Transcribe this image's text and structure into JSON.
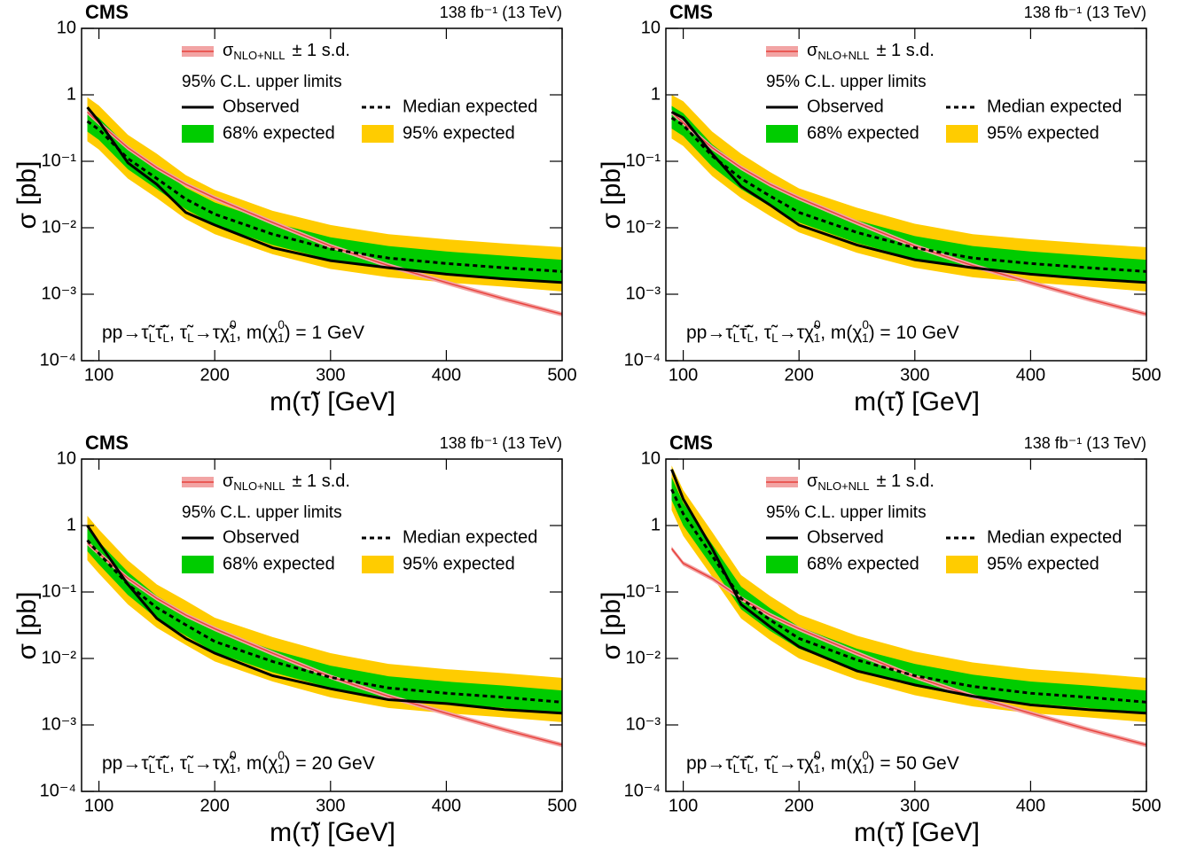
{
  "chart_data": [
    {
      "type": "line",
      "experiment": "CMS",
      "lumi_label": "138 fb⁻¹ (13 TeV)",
      "xlabel": "m(τ̃) [GeV]",
      "ylabel": "σ [pb]",
      "legend_title": "95% C.L. upper limits",
      "annotation": [
        "pp→τ̃",
        "L",
        "τ̃̄",
        "L",
        ", τ̃",
        "L",
        "→τχ̃",
        "0",
        "1",
        ", m(χ",
        "0",
        "1",
        ") = 1 GeV"
      ],
      "log_y": true,
      "xlim": [
        85,
        500
      ],
      "ylim": [
        0.0001,
        10
      ],
      "xticks": [
        100,
        200,
        300,
        400,
        500
      ],
      "yticks": [
        {
          "value": 0.0001,
          "label": "10⁻⁴"
        },
        {
          "value": 0.001,
          "label": "10⁻³"
        },
        {
          "value": 0.01,
          "label": "10⁻²"
        },
        {
          "value": 0.1,
          "label": "10⁻¹"
        },
        1,
        10
      ],
      "x": [
        90,
        100,
        125,
        150,
        175,
        200,
        250,
        300,
        350,
        400,
        450,
        500
      ],
      "series": [
        {
          "name": "95% expected",
          "color": "#ffcc00",
          "low": [
            0.2,
            0.15,
            0.055,
            0.028,
            0.0135,
            0.008,
            0.004,
            0.0024,
            0.0018,
            0.0015,
            0.0013,
            0.0011
          ],
          "high": [
            0.92,
            0.69,
            0.25,
            0.13,
            0.062,
            0.037,
            0.018,
            0.011,
            0.008,
            0.0067,
            0.0058,
            0.0051
          ]
        },
        {
          "name": "68% expected",
          "color": "#00cc00",
          "low": [
            0.28,
            0.21,
            0.076,
            0.038,
            0.019,
            0.011,
            0.0055,
            0.0033,
            0.0024,
            0.002,
            0.0017,
            0.0015
          ],
          "high": [
            0.6,
            0.45,
            0.165,
            0.083,
            0.04,
            0.024,
            0.012,
            0.0072,
            0.0053,
            0.0044,
            0.0038,
            0.0033
          ]
        },
        {
          "name": [
            "σ",
            "NLO+NLL",
            "± 1 s.d."
          ],
          "color": "#e8413c",
          "band_color": "#f2a4a4",
          "values": [
            0.55,
            0.38,
            0.16,
            0.08,
            0.045,
            0.028,
            0.012,
            0.0053,
            0.0027,
            0.0015,
            0.00085,
            0.0005
          ],
          "low": [
            0.506,
            0.35,
            0.147,
            0.0736,
            0.0414,
            0.0258,
            0.011,
            0.0049,
            0.00248,
            0.00138,
            0.00078,
            0.00046
          ],
          "high": [
            0.594,
            0.41,
            0.173,
            0.0864,
            0.0486,
            0.0302,
            0.013,
            0.0057,
            0.00292,
            0.00162,
            0.00092,
            0.00054
          ]
        },
        {
          "name": "Median expected",
          "color": "#000000",
          "dashed": true,
          "values": [
            0.4,
            0.3,
            0.11,
            0.055,
            0.027,
            0.016,
            0.008,
            0.0048,
            0.0035,
            0.0029,
            0.0025,
            0.0022
          ]
        },
        {
          "name": "Observed",
          "color": "#000000",
          "values": [
            0.65,
            0.4,
            0.095,
            0.045,
            0.017,
            0.011,
            0.005,
            0.0032,
            0.0025,
            0.002,
            0.0017,
            0.0015
          ]
        }
      ]
    },
    {
      "type": "line",
      "experiment": "CMS",
      "lumi_label": "138 fb⁻¹ (13 TeV)",
      "xlabel": "m(τ̃) [GeV]",
      "ylabel": "σ [pb]",
      "legend_title": "95% C.L. upper limits",
      "annotation": [
        "pp→τ̃",
        "L",
        "τ̃̄",
        "L",
        ", τ̃",
        "L",
        "→τχ̃",
        "0",
        "1",
        ", m(χ",
        "0",
        "1",
        ") = 10 GeV"
      ],
      "log_y": true,
      "xlim": [
        85,
        500
      ],
      "ylim": [
        0.0001,
        10
      ],
      "xticks": [
        100,
        200,
        300,
        400,
        500
      ],
      "yticks": [
        {
          "value": 0.0001,
          "label": "10⁻⁴"
        },
        {
          "value": 0.001,
          "label": "10⁻³"
        },
        {
          "value": 0.01,
          "label": "10⁻²"
        },
        {
          "value": 0.1,
          "label": "10⁻¹"
        },
        1,
        10
      ],
      "x": [
        90,
        100,
        125,
        150,
        175,
        200,
        250,
        300,
        350,
        400,
        450,
        500
      ],
      "series": [
        {
          "name": "95% expected",
          "color": "#ffcc00",
          "low": [
            0.22,
            0.17,
            0.06,
            0.028,
            0.015,
            0.0085,
            0.0042,
            0.0025,
            0.0018,
            0.0015,
            0.0013,
            0.0011
          ],
          "high": [
            1.0,
            0.8,
            0.28,
            0.13,
            0.069,
            0.039,
            0.02,
            0.0115,
            0.008,
            0.0067,
            0.0058,
            0.0051
          ]
        },
        {
          "name": "68% expected",
          "color": "#00cc00",
          "low": [
            0.31,
            0.24,
            0.083,
            0.038,
            0.021,
            0.012,
            0.0059,
            0.0034,
            0.0024,
            0.002,
            0.0017,
            0.0015
          ],
          "high": [
            0.68,
            0.53,
            0.18,
            0.083,
            0.045,
            0.026,
            0.013,
            0.0075,
            0.0053,
            0.0044,
            0.0038,
            0.0033
          ]
        },
        {
          "name": [
            "σ",
            "NLO+NLL",
            "± 1 s.d."
          ],
          "color": "#e8413c",
          "band_color": "#f2a4a4",
          "values": [
            0.55,
            0.38,
            0.16,
            0.08,
            0.045,
            0.028,
            0.012,
            0.0053,
            0.0027,
            0.0015,
            0.00085,
            0.0005
          ],
          "low": [
            0.506,
            0.35,
            0.147,
            0.0736,
            0.0414,
            0.0258,
            0.011,
            0.0049,
            0.00248,
            0.00138,
            0.00078,
            0.00046
          ],
          "high": [
            0.594,
            0.41,
            0.173,
            0.0864,
            0.0486,
            0.0302,
            0.013,
            0.0057,
            0.00292,
            0.00162,
            0.00092,
            0.00054
          ]
        },
        {
          "name": "Median expected",
          "color": "#000000",
          "dashed": true,
          "values": [
            0.45,
            0.35,
            0.12,
            0.055,
            0.03,
            0.017,
            0.0085,
            0.005,
            0.0035,
            0.0029,
            0.0025,
            0.0022
          ]
        },
        {
          "name": "Observed",
          "color": "#000000",
          "values": [
            0.55,
            0.45,
            0.13,
            0.042,
            0.022,
            0.011,
            0.0055,
            0.0033,
            0.0025,
            0.002,
            0.0017,
            0.0015
          ]
        }
      ]
    },
    {
      "type": "line",
      "experiment": "CMS",
      "lumi_label": "138 fb⁻¹ (13 TeV)",
      "xlabel": "m(τ̃) [GeV]",
      "ylabel": "σ [pb]",
      "legend_title": "95% C.L. upper limits",
      "annotation": [
        "pp→τ̃",
        "L",
        "τ̃̄",
        "L",
        ", τ̃",
        "L",
        "→τχ̃",
        "0",
        "1",
        ", m(χ",
        "0",
        "1",
        ") = 20 GeV"
      ],
      "log_y": true,
      "xlim": [
        85,
        500
      ],
      "ylim": [
        0.0001,
        10
      ],
      "xticks": [
        100,
        200,
        300,
        400,
        500
      ],
      "yticks": [
        {
          "value": 0.0001,
          "label": "10⁻⁴"
        },
        {
          "value": 0.001,
          "label": "10⁻³"
        },
        {
          "value": 0.01,
          "label": "10⁻²"
        },
        {
          "value": 0.1,
          "label": "10⁻¹"
        },
        1,
        10
      ],
      "x": [
        90,
        100,
        125,
        150,
        175,
        200,
        250,
        300,
        350,
        400,
        450,
        500
      ],
      "series": [
        {
          "name": "95% expected",
          "color": "#ffcc00",
          "low": [
            0.3,
            0.19,
            0.065,
            0.029,
            0.016,
            0.009,
            0.0045,
            0.0026,
            0.0018,
            0.0015,
            0.0013,
            0.0011
          ],
          "high": [
            1.4,
            0.87,
            0.3,
            0.13,
            0.074,
            0.041,
            0.021,
            0.012,
            0.0083,
            0.0069,
            0.006,
            0.0051
          ]
        },
        {
          "name": "68% expected",
          "color": "#00cc00",
          "low": [
            0.41,
            0.26,
            0.09,
            0.04,
            0.022,
            0.0124,
            0.0062,
            0.0036,
            0.0025,
            0.0021,
            0.0018,
            0.0015
          ],
          "high": [
            0.9,
            0.57,
            0.2,
            0.087,
            0.048,
            0.027,
            0.0135,
            0.0078,
            0.0054,
            0.0045,
            0.0039,
            0.0033
          ]
        },
        {
          "name": [
            "σ",
            "NLO+NLL",
            "± 1 s.d."
          ],
          "color": "#e8413c",
          "band_color": "#f2a4a4",
          "values": [
            0.55,
            0.38,
            0.16,
            0.08,
            0.045,
            0.028,
            0.012,
            0.0053,
            0.0027,
            0.0015,
            0.00085,
            0.0005
          ],
          "low": [
            0.506,
            0.35,
            0.147,
            0.0736,
            0.0414,
            0.0258,
            0.011,
            0.0049,
            0.00248,
            0.00138,
            0.00078,
            0.00046
          ],
          "high": [
            0.594,
            0.41,
            0.173,
            0.0864,
            0.0486,
            0.0302,
            0.013,
            0.0057,
            0.00292,
            0.00162,
            0.00092,
            0.00054
          ]
        },
        {
          "name": "Median expected",
          "color": "#000000",
          "dashed": true,
          "values": [
            0.6,
            0.38,
            0.13,
            0.058,
            0.032,
            0.018,
            0.009,
            0.0052,
            0.0036,
            0.003,
            0.0026,
            0.0022
          ]
        },
        {
          "name": "Observed",
          "color": "#000000",
          "values": [
            1.0,
            0.55,
            0.13,
            0.04,
            0.02,
            0.012,
            0.0055,
            0.0035,
            0.0024,
            0.0021,
            0.0017,
            0.0015
          ]
        }
      ]
    },
    {
      "type": "line",
      "experiment": "CMS",
      "lumi_label": "138 fb⁻¹ (13 TeV)",
      "xlabel": "m(τ̃) [GeV]",
      "ylabel": "σ [pb]",
      "legend_title": "95% C.L. upper limits",
      "annotation": [
        "pp→τ̃",
        "L",
        "τ̃̄",
        "L",
        ", τ̃",
        "L",
        "→τχ̃",
        "0",
        "1",
        ", m(χ",
        "0",
        "1",
        ") = 50 GeV"
      ],
      "log_y": true,
      "xlim": [
        85,
        500
      ],
      "ylim": [
        0.0001,
        10
      ],
      "xticks": [
        100,
        200,
        300,
        400,
        500
      ],
      "yticks": [
        {
          "value": 0.0001,
          "label": "10⁻⁴"
        },
        {
          "value": 0.001,
          "label": "10⁻³"
        },
        {
          "value": 0.01,
          "label": "10⁻²"
        },
        {
          "value": 0.1,
          "label": "10⁻¹"
        },
        1,
        10
      ],
      "x": [
        90,
        100,
        125,
        150,
        175,
        200,
        250,
        300,
        350,
        400,
        450,
        500
      ],
      "series": [
        {
          "name": "95% expected",
          "color": "#ffcc00",
          "low": [
            1.7,
            0.7,
            0.17,
            0.04,
            0.019,
            0.01,
            0.0048,
            0.0028,
            0.0019,
            0.0015,
            0.0013,
            0.0011
          ],
          "high": [
            8,
            3.4,
            0.8,
            0.18,
            0.087,
            0.046,
            0.022,
            0.0127,
            0.0087,
            0.0069,
            0.006,
            0.0051
          ]
        },
        {
          "name": "68% expected",
          "color": "#00cc00",
          "low": [
            2.4,
            1.0,
            0.24,
            0.055,
            0.026,
            0.014,
            0.0066,
            0.0038,
            0.0026,
            0.0021,
            0.0018,
            0.0015
          ],
          "high": [
            5.3,
            2.2,
            0.52,
            0.12,
            0.057,
            0.03,
            0.014,
            0.0083,
            0.0057,
            0.0045,
            0.0039,
            0.0033
          ]
        },
        {
          "name": [
            "σ",
            "NLO+NLL",
            "± 1 s.d."
          ],
          "color": "#e8413c",
          "band_color": "#f2a4a4",
          "values": [
            0.45,
            0.27,
            0.16,
            0.08,
            0.045,
            0.028,
            0.012,
            0.0053,
            0.0027,
            0.0015,
            0.00085,
            0.0005
          ],
          "low": [
            0.414,
            0.248,
            0.147,
            0.0736,
            0.0414,
            0.0258,
            0.011,
            0.0049,
            0.00248,
            0.00138,
            0.00078,
            0.00046
          ],
          "high": [
            0.486,
            0.292,
            0.173,
            0.0864,
            0.0486,
            0.0302,
            0.013,
            0.0057,
            0.00292,
            0.00162,
            0.00092,
            0.00054
          ]
        },
        {
          "name": "Median expected",
          "color": "#000000",
          "dashed": true,
          "values": [
            3.5,
            1.5,
            0.35,
            0.08,
            0.038,
            0.02,
            0.0095,
            0.0055,
            0.0038,
            0.003,
            0.0026,
            0.0022
          ]
        },
        {
          "name": "Observed",
          "color": "#000000",
          "values": [
            7,
            2.5,
            0.45,
            0.065,
            0.03,
            0.015,
            0.0065,
            0.004,
            0.0027,
            0.002,
            0.0017,
            0.0015
          ]
        }
      ]
    }
  ]
}
